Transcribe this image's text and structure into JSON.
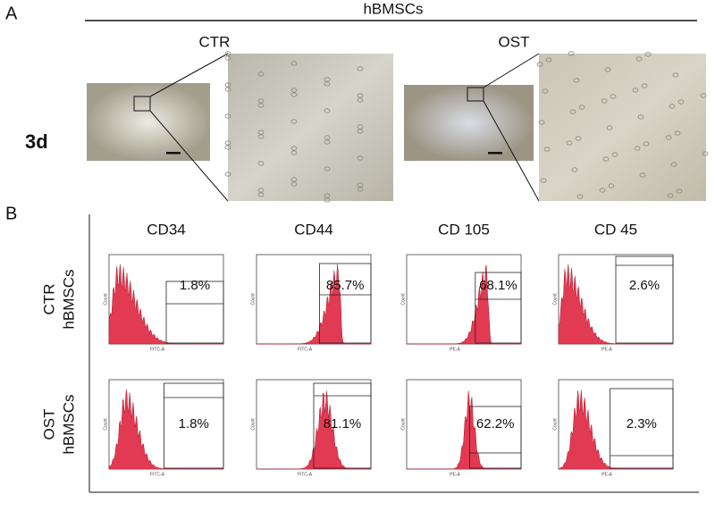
{
  "panel_a": {
    "label": "A",
    "group": "hBMSCs",
    "conditions": [
      "CTR",
      "OST"
    ],
    "timepoint": "3d"
  },
  "panel_b": {
    "label": "B",
    "markers": [
      "CD34",
      "CD44",
      "CD 105",
      "CD 45"
    ],
    "x_axis_labels": [
      "FITC-A",
      "FITC-A",
      "PE-A",
      "PE-A"
    ],
    "y_axis_label": "Count",
    "rows": [
      {
        "label": [
          "CTR",
          "hBMSCs"
        ],
        "percentages": [
          "1.8%",
          "85.7%",
          "68.1%",
          "2.6%"
        ]
      },
      {
        "label": [
          "OST",
          "hBMSCs"
        ],
        "percentages": [
          "1.8%",
          "81.1%",
          "62.2%",
          "2.3%"
        ]
      }
    ]
  }
}
